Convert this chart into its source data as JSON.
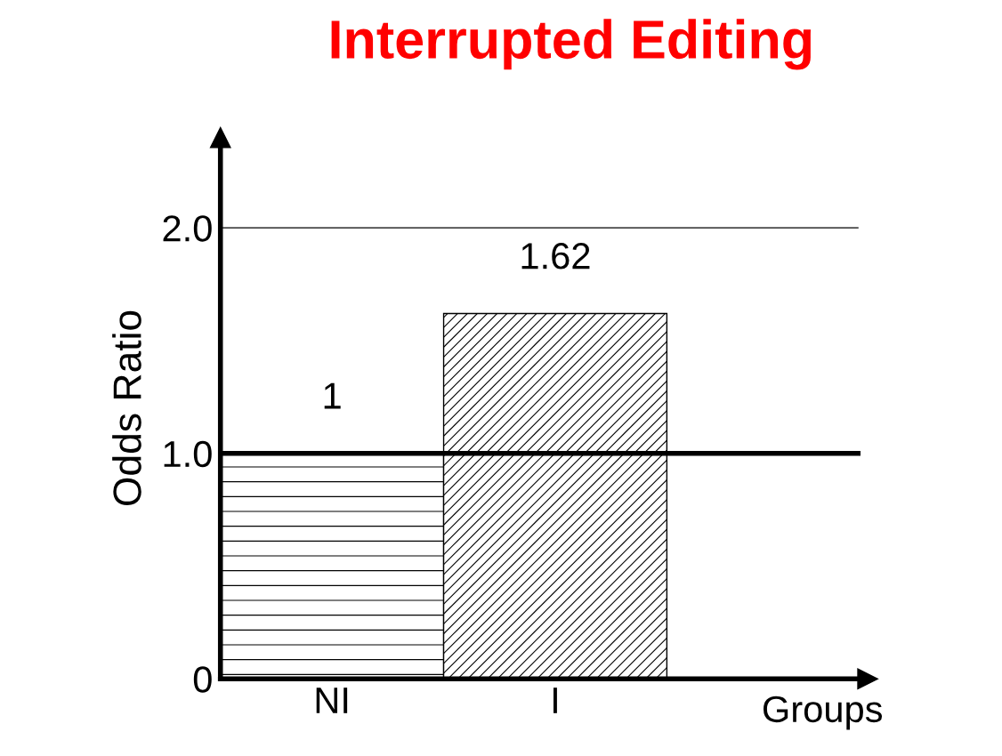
{
  "chart_data": {
    "type": "bar",
    "title": "Interrupted Editing",
    "xlabel": "Groups",
    "ylabel": "Odds Ratio",
    "categories": [
      "NI",
      "I"
    ],
    "values": [
      1,
      1.62
    ],
    "colors": [
      "#000000",
      "#000000"
    ],
    "value_labels": [
      "1",
      "1.62"
    ],
    "ylim": [
      0,
      2.4
    ],
    "yticks": [
      0,
      {
        "value": 1,
        "label": "1.0"
      },
      {
        "value": 2,
        "label": "2.0"
      }
    ],
    "ref_lines": [
      {
        "axis": "y",
        "value": 1,
        "color": "#000000",
        "line_style": "solid"
      },
      {
        "axis": "y",
        "value": 2,
        "color": "#000000",
        "line_style": "solid"
      }
    ],
    "grid": false,
    "legend": false
  }
}
